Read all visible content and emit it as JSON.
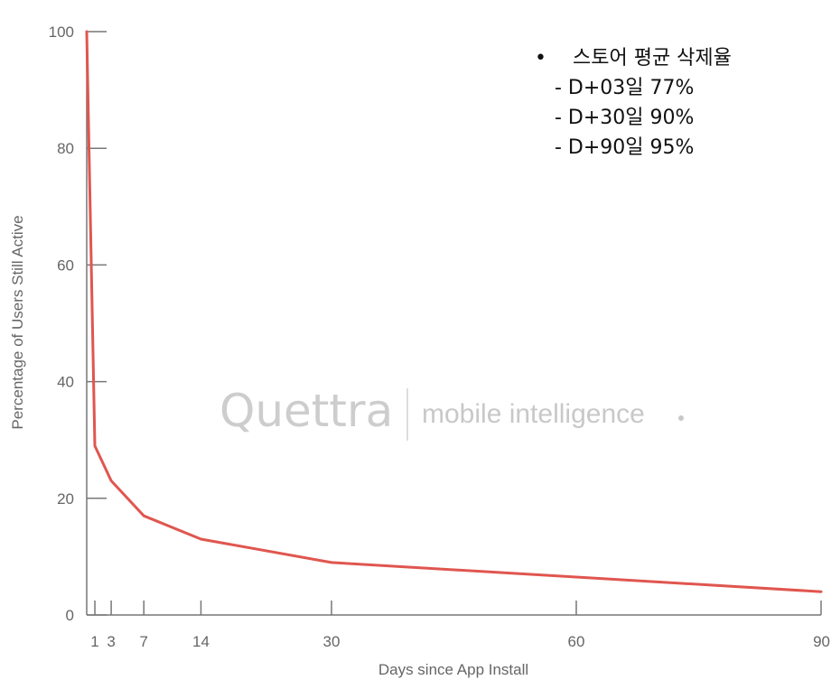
{
  "chart_data": {
    "type": "line",
    "xlabel": "Days since App Install",
    "ylabel": "Percentage of Users Still Active",
    "xlim": [
      0,
      90
    ],
    "ylim": [
      0,
      100
    ],
    "x_ticks": [
      1,
      3,
      7,
      14,
      30,
      60,
      90
    ],
    "y_ticks": [
      0,
      20,
      40,
      60,
      80,
      100
    ],
    "grid": false,
    "series": [
      {
        "color": "#e0564f",
        "x": [
          0,
          1,
          3,
          7,
          14,
          30,
          60,
          90
        ],
        "y": [
          100,
          29,
          23,
          17,
          13,
          9,
          6.5,
          4
        ]
      }
    ]
  },
  "watermark": {
    "logo": "Quettra",
    "tagline": "mobile intelligence",
    "color": "#c8c8c8"
  },
  "annotation": {
    "bullet": "•",
    "heading": "스토어 평균 삭제율",
    "lines": [
      "- D+03일 77%",
      "- D+30일 90%",
      "- D+90일 95%"
    ]
  }
}
